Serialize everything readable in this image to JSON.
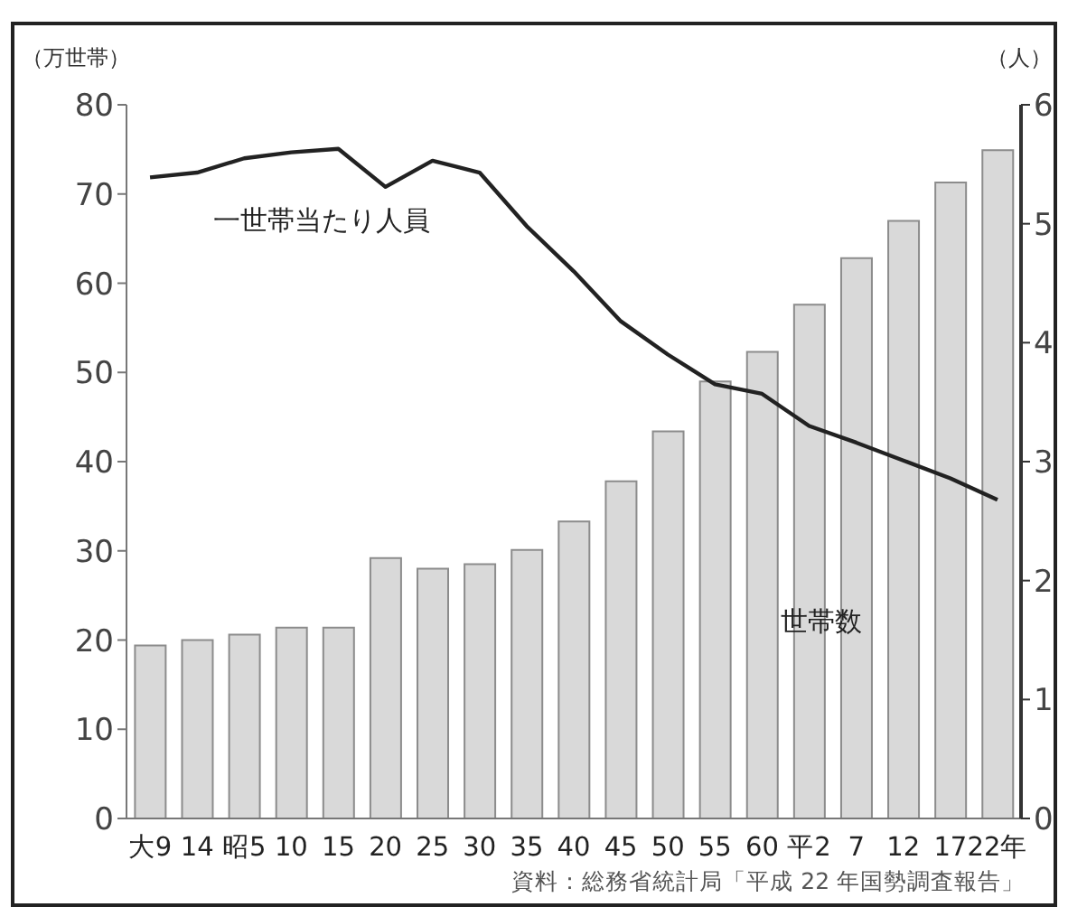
{
  "chart_data": {
    "type": "bar",
    "ylabel": "（万世帯）",
    "y2label": "（人）",
    "categories": [
      "大9",
      "14",
      "昭5",
      "10",
      "15",
      "20",
      "25",
      "30",
      "35",
      "40",
      "45",
      "50",
      "55",
      "60",
      "平2",
      "7",
      "12",
      "17",
      "22年"
    ],
    "series": [
      {
        "name": "世帯数",
        "color": "#d9d9d9",
        "values": [
          19.4,
          20.0,
          20.6,
          21.4,
          21.4,
          29.2,
          28.0,
          28.5,
          30.1,
          33.3,
          37.8,
          43.4,
          49.0,
          52.3,
          57.6,
          62.8,
          67.0,
          71.3,
          74.9
        ]
      },
      {
        "name": "一世帯当たり人員",
        "type": "line",
        "axis": "y2",
        "color": "#222222",
        "values": [
          5.39,
          5.43,
          5.55,
          5.6,
          5.63,
          5.31,
          5.53,
          5.43,
          4.98,
          4.6,
          4.18,
          3.9,
          3.65,
          3.57,
          3.3,
          3.16,
          3.01,
          2.86,
          2.68
        ]
      }
    ],
    "ylim": [
      0,
      80
    ],
    "yticks": [
      0,
      10,
      20,
      30,
      40,
      50,
      60,
      70,
      80
    ],
    "y2lim": [
      0,
      6
    ],
    "y2ticks": [
      0,
      1,
      2,
      3,
      4,
      5,
      6
    ],
    "grid": false,
    "legend": false,
    "marker": "none",
    "line_style": "solid",
    "annotations": [
      "資料：総務省統計局「平成 22 年国勢調査報告」"
    ]
  }
}
